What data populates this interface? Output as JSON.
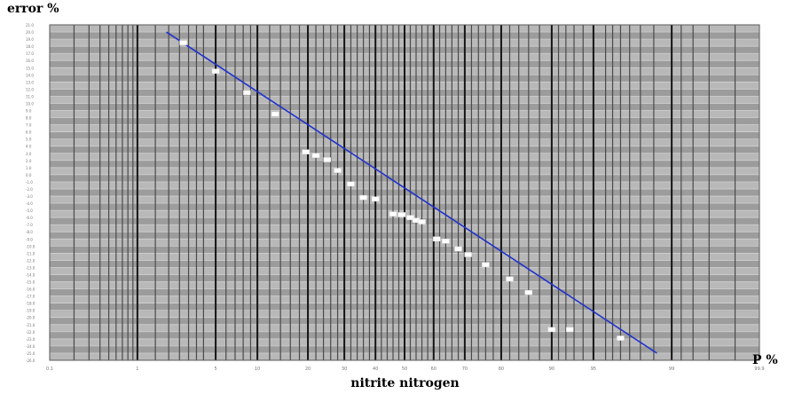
{
  "chart_data": {
    "type": "scatter",
    "title": "nitrite nitrogen",
    "ylabel": "error  %",
    "xlabel": "P %",
    "x_scale": "normal-probability",
    "grid": true,
    "background_color": "#a8a8a8",
    "fit_line_color": "#2233cc",
    "point_color": "#ffffff",
    "xlim": [
      0.1,
      99.9
    ],
    "ylim": [
      -26.0,
      21.0
    ],
    "x_tick_labels": [
      "0.1",
      "1",
      "5",
      "10",
      "20",
      "30",
      "40",
      "50",
      "60",
      "70",
      "80",
      "90",
      "95",
      "99",
      "99.9"
    ],
    "y_tick_labels": [
      "21.0",
      "20.0",
      "19.0",
      "18.0",
      "17.0",
      "16.0",
      "15.0",
      "14.0",
      "13.0",
      "12.0",
      "11.0",
      "10.0",
      "9.0",
      "8.0",
      "7.0",
      "6.0",
      "5.0",
      "4.0",
      "3.0",
      "2.0",
      "1.0",
      "0.0",
      "-1.0",
      "-2.0",
      "-3.0",
      "-4.0",
      "-5.0",
      "-6.0",
      "-7.0",
      "-8.0",
      "-9.0",
      "-10.0",
      "-11.0",
      "-12.0",
      "-13.0",
      "-14.0",
      "-15.0",
      "-16.0",
      "-17.0",
      "-18.0",
      "-19.0",
      "-20.0",
      "-21.0",
      "-22.0",
      "-23.0",
      "-24.0",
      "-25.0",
      "-26.0"
    ],
    "fit_line": [
      [
        1.9,
        20.0
      ],
      [
        98.6,
        -25.0
      ]
    ],
    "points": [
      [
        2.7,
        18.5
      ],
      [
        5.0,
        14.5
      ],
      [
        8.5,
        11.5
      ],
      [
        13.0,
        8.5
      ],
      [
        19.5,
        3.2
      ],
      [
        22.0,
        2.7
      ],
      [
        25.0,
        2.1
      ],
      [
        28.0,
        0.6
      ],
      [
        32.0,
        -1.3
      ],
      [
        36.0,
        -3.2
      ],
      [
        40.0,
        -3.4
      ],
      [
        46.0,
        -5.5
      ],
      [
        49.0,
        -5.6
      ],
      [
        52.0,
        -6.0
      ],
      [
        54.0,
        -6.4
      ],
      [
        56.0,
        -6.6
      ],
      [
        61.0,
        -9.0
      ],
      [
        64.0,
        -9.3
      ],
      [
        68.0,
        -10.4
      ],
      [
        71.0,
        -11.2
      ],
      [
        76.0,
        -12.6
      ],
      [
        82.0,
        -14.6
      ],
      [
        86.0,
        -16.5
      ],
      [
        90.0,
        -21.7
      ],
      [
        92.5,
        -21.7
      ],
      [
        97.0,
        -22.9
      ]
    ]
  }
}
